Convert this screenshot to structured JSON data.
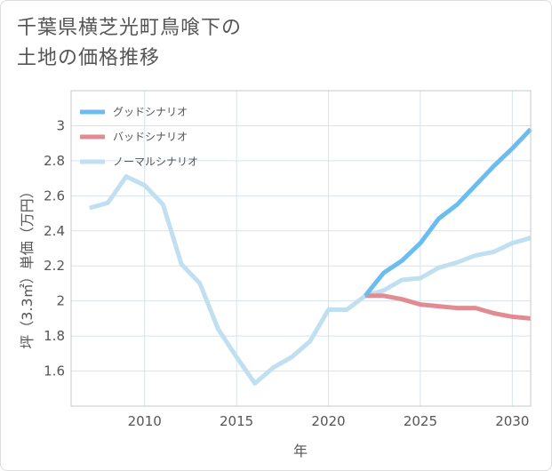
{
  "title_lines": [
    "千葉県横芝光町鳥喰下の",
    "土地の価格推移"
  ],
  "chart_data": {
    "type": "line",
    "xlabel": "年",
    "ylabel": "坪（3.3㎡）単価（万円）",
    "xlim": [
      2006,
      2031
    ],
    "ylim": [
      1.4,
      3.2
    ],
    "x_ticks": [
      2010,
      2015,
      2020,
      2025,
      2030
    ],
    "y_ticks": [
      1.6,
      1.8,
      2,
      2.2,
      2.4,
      2.6,
      2.8,
      3
    ],
    "grid": true,
    "legend_position": "top-left",
    "series": [
      {
        "name": "グッドシナリオ",
        "color": "#6bbdef",
        "x": [
          2022,
          2023,
          2024,
          2025,
          2026,
          2027,
          2028,
          2029,
          2030,
          2031
        ],
        "values": [
          2.03,
          2.16,
          2.23,
          2.33,
          2.47,
          2.55,
          2.66,
          2.77,
          2.87,
          2.98
        ]
      },
      {
        "name": "バッドシナリオ",
        "color": "#e18b93",
        "x": [
          2022,
          2023,
          2024,
          2025,
          2026,
          2027,
          2028,
          2029,
          2030,
          2031
        ],
        "values": [
          2.03,
          2.03,
          2.01,
          1.98,
          1.97,
          1.96,
          1.96,
          1.93,
          1.91,
          1.9
        ]
      },
      {
        "name": "ノーマルシナリオ",
        "color": "#c0dff0",
        "x": [
          2007,
          2008,
          2009,
          2010,
          2011,
          2012,
          2013,
          2014,
          2015,
          2016,
          2017,
          2018,
          2019,
          2020,
          2021,
          2022,
          2023,
          2024,
          2025,
          2026,
          2027,
          2028,
          2029,
          2030,
          2031
        ],
        "values": [
          2.53,
          2.56,
          2.71,
          2.66,
          2.55,
          2.21,
          2.1,
          1.84,
          1.68,
          1.53,
          1.62,
          1.68,
          1.77,
          1.95,
          1.95,
          2.03,
          2.06,
          2.12,
          2.13,
          2.19,
          2.22,
          2.26,
          2.28,
          2.33,
          2.36
        ]
      }
    ]
  }
}
